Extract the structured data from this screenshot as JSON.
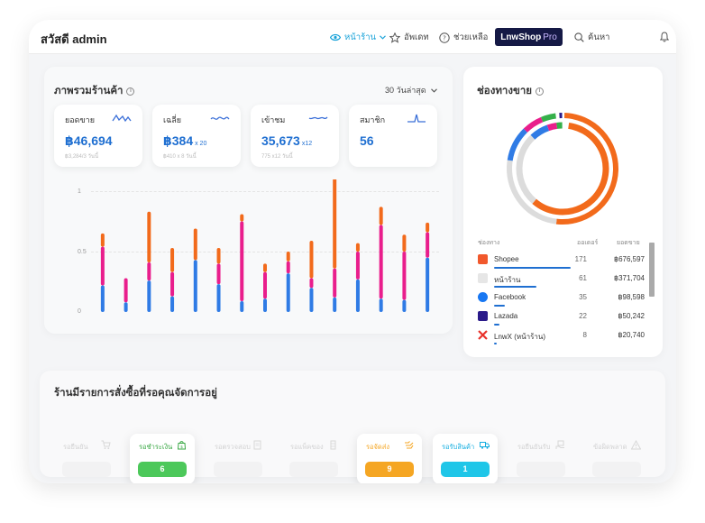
{
  "header": {
    "greeting": "สวัสดี admin",
    "nav": [
      {
        "label": "หน้าร้าน",
        "icon": "eye-icon",
        "active": true
      },
      {
        "label": "อัพเดท",
        "icon": "star-icon",
        "active": false
      },
      {
        "label": "ช่วยเหลือ",
        "icon": "help-icon",
        "active": false
      }
    ],
    "pro_button": {
      "brand": "LnwShop",
      "tier": "Pro"
    },
    "search_label": "ค้นหา"
  },
  "overview": {
    "title": "ภาพรวมร้านค้า",
    "period": "30 วันล่าสุด",
    "stats": [
      {
        "label": "ยอดขาย",
        "value": "฿46,694",
        "suffix": "",
        "sub": "฿3,284/3 วันนี้"
      },
      {
        "label": "เฉลี่ย",
        "value": "฿384",
        "suffix": "x 20",
        "sub": "฿410 x 8 วันนี้"
      },
      {
        "label": "เข้าชม",
        "value": "35,673",
        "suffix": "x12",
        "sub": "775 x12 วันนี้"
      },
      {
        "label": "สมาชิก",
        "value": "56",
        "suffix": "",
        "sub": ""
      }
    ]
  },
  "chart_data": {
    "type": "bar",
    "stacked": true,
    "yticks": [
      "1",
      "0.5",
      "0"
    ],
    "ylim": [
      0,
      1
    ],
    "colors": {
      "blue": "#2f7be5",
      "pink": "#e91e8c",
      "orange": "#f26a1b"
    },
    "series": [
      {
        "color": "blue",
        "values": [
          0.22,
          0.08,
          0.26,
          0.13,
          0.43,
          0.23,
          0.09,
          0.11,
          0.32,
          0.2,
          0.12,
          0.27,
          0.11,
          0.1,
          0.45
        ]
      },
      {
        "color": "pink",
        "values": [
          0.32,
          0.2,
          0.15,
          0.2,
          0.0,
          0.17,
          0.66,
          0.22,
          0.1,
          0.08,
          0.24,
          0.23,
          0.61,
          0.4,
          0.21
        ]
      },
      {
        "color": "orange",
        "values": [
          0.11,
          0.0,
          0.42,
          0.2,
          0.26,
          0.13,
          0.06,
          0.07,
          0.08,
          0.31,
          0.76,
          0.07,
          0.15,
          0.14,
          0.08
        ]
      }
    ]
  },
  "channels": {
    "title": "ช่องทางขาย",
    "columns": [
      "ช่องทาง",
      "ออเดอร์",
      "ยอดขาย"
    ],
    "rows": [
      {
        "name": "Shopee",
        "orders": "171",
        "sales": "฿676,597",
        "icon": "shopee-icon",
        "color": "#f1582c",
        "share": 0.97
      },
      {
        "name": "หน้าร้าน",
        "orders": "61",
        "sales": "฿371,704",
        "icon": "storefront-icon",
        "color": "#e6e6e6",
        "share": 0.53
      },
      {
        "name": "Facebook",
        "orders": "35",
        "sales": "฿98,598",
        "icon": "facebook-icon",
        "color": "#1877f2",
        "share": 0.14
      },
      {
        "name": "Lazada",
        "orders": "22",
        "sales": "฿50,242",
        "icon": "lazada-icon",
        "color": "#2a1a8a",
        "share": 0.07
      },
      {
        "name": "LnwX (หน้าร้าน)",
        "orders": "8",
        "sales": "฿20,740",
        "icon": "lnwx-icon",
        "color": "#e8322b",
        "share": 0.03
      }
    ],
    "donut_colors": [
      "#f26a1b",
      "#dcdcdc",
      "#2f7be5",
      "#e91e8c",
      "#35b04a"
    ]
  },
  "orders": {
    "title": "ร้านมีรายการสั่งซื้อที่รอคุณจัดการอยู่",
    "statuses": [
      {
        "label": "รอยืนยัน",
        "count": "",
        "active": false,
        "color": "#bbbbbb"
      },
      {
        "label": "รอชำระเงิน",
        "count": "6",
        "active": true,
        "color": "#4cc85a"
      },
      {
        "label": "รอตรวจสอบ",
        "count": "",
        "active": false,
        "color": "#bbbbbb"
      },
      {
        "label": "รอแพ็คของ",
        "count": "",
        "active": false,
        "color": "#bbbbbb"
      },
      {
        "label": "รอจัดส่ง",
        "count": "9",
        "active": true,
        "color": "#f5a623"
      },
      {
        "label": "รอรับสินค้า",
        "count": "1",
        "active": true,
        "color": "#1fc6e8"
      },
      {
        "label": "รอยืนยันรับ",
        "count": "",
        "active": false,
        "color": "#bbbbbb"
      },
      {
        "label": "ข้อผิดพลาด",
        "count": "",
        "active": false,
        "color": "#bbbbbb"
      }
    ]
  }
}
